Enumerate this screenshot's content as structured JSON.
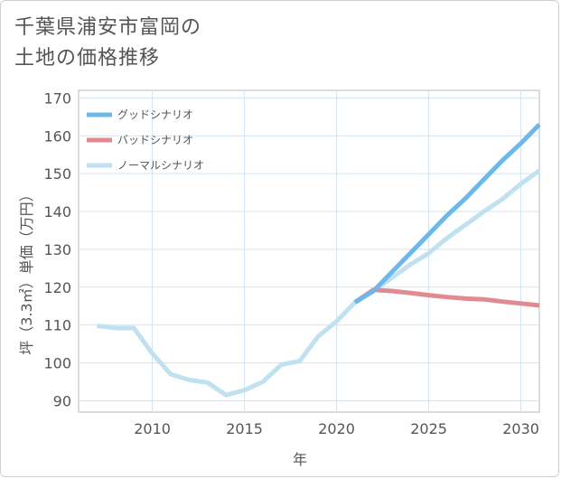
{
  "title_lines": [
    "千葉県浦安市富岡の",
    "土地の価格推移"
  ],
  "chart_data": {
    "type": "line",
    "title": "千葉県浦安市富岡の土地の価格推移",
    "xlabel": "年",
    "ylabel": "坪（3.3㎡）単価（万円）",
    "xlim": [
      2006,
      2031
    ],
    "ylim": [
      87,
      172
    ],
    "xticks": [
      2010,
      2015,
      2020,
      2025,
      2030
    ],
    "yticks": [
      90,
      100,
      110,
      120,
      130,
      140,
      150,
      160,
      170
    ],
    "grid": true,
    "legend_position": "top-left",
    "series": [
      {
        "name": "グッドシナリオ",
        "color": "#6cb8ea",
        "x": [
          2021,
          2022,
          2023,
          2024,
          2025,
          2026,
          2027,
          2028,
          2029,
          2030,
          2031
        ],
        "y": [
          116,
          119,
          124,
          129,
          134,
          139,
          143.5,
          148.5,
          153.5,
          158,
          163
        ]
      },
      {
        "name": "バッドシナリオ",
        "color": "#e08a92",
        "x": [
          2021,
          2022,
          2023,
          2024,
          2025,
          2026,
          2027,
          2028,
          2029,
          2030,
          2031
        ],
        "y": [
          116,
          119.3,
          119,
          118.5,
          117.9,
          117.4,
          117,
          116.8,
          116.2,
          115.7,
          115.2
        ]
      },
      {
        "name": "ノーマルシナリオ",
        "color": "#bfe1f0",
        "x": [
          2007,
          2008,
          2009,
          2010,
          2011,
          2012,
          2013,
          2014,
          2015,
          2016,
          2017,
          2018,
          2019,
          2020,
          2021,
          2022,
          2023,
          2024,
          2025,
          2026,
          2027,
          2028,
          2029,
          2030,
          2031
        ],
        "y": [
          109.8,
          109.2,
          109.2,
          102.5,
          97,
          95.5,
          94.8,
          91.5,
          92.8,
          95,
          99.5,
          100.5,
          107,
          111,
          116,
          119,
          122.5,
          126,
          129,
          133,
          136.5,
          140,
          143.3,
          147.3,
          150.8
        ]
      }
    ]
  }
}
